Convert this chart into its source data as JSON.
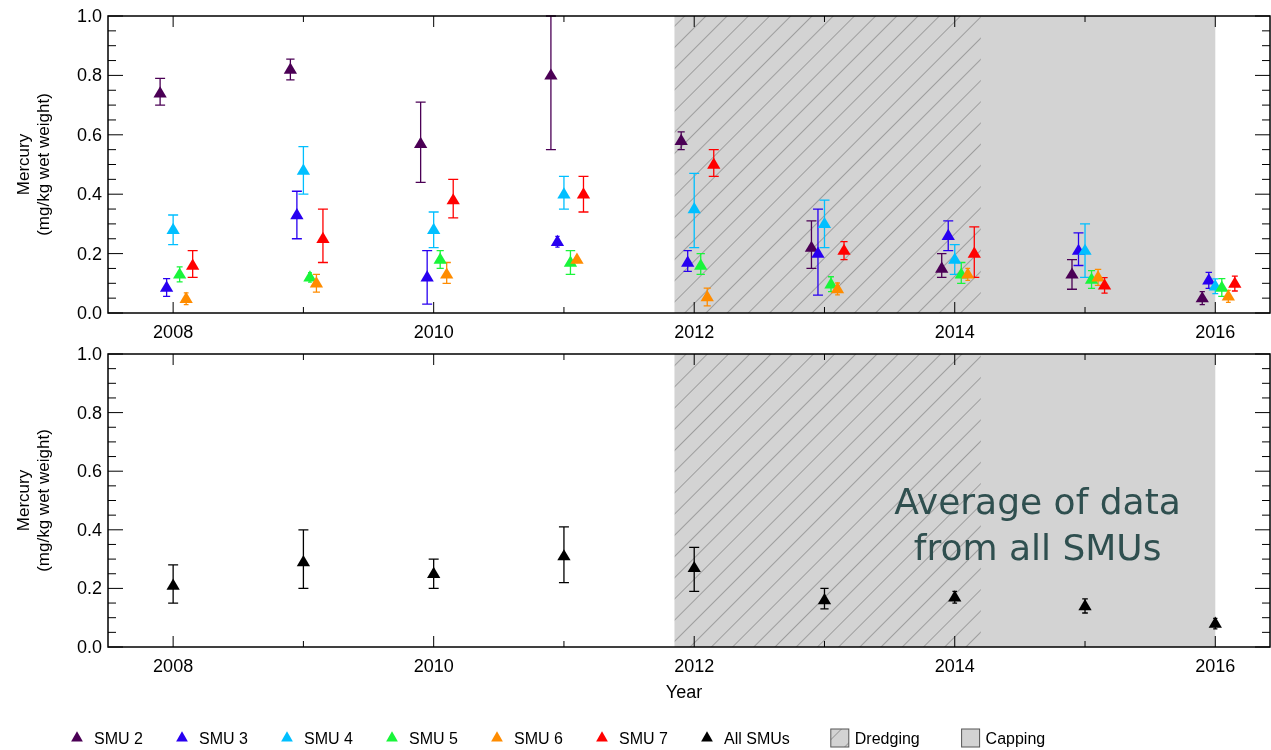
{
  "chart_data": [
    {
      "type": "scatter",
      "ylabel": "Mercury\n(mg/kg wet weight)",
      "marker": "triangle",
      "legend": "bottom",
      "xlim": [
        2007.5,
        2016.42
      ],
      "xticks": [
        2008,
        {
          "value": 2009,
          "label": null
        },
        2010,
        {
          "value": 2011,
          "label": null
        },
        2012,
        {
          "value": 2013,
          "label": null
        },
        2014,
        {
          "value": 2015,
          "label": null
        },
        2016
      ],
      "ylim": [
        0,
        1
      ],
      "yticks": [
        {
          "value": 0,
          "label": "0.0"
        },
        {
          "value": 0.05,
          "label": null
        },
        {
          "value": 0.1,
          "label": null
        },
        {
          "value": 0.15,
          "label": null
        },
        {
          "value": 0.2,
          "label": "0.2"
        },
        {
          "value": 0.25,
          "label": null
        },
        {
          "value": 0.3,
          "label": null
        },
        {
          "value": 0.35,
          "label": null
        },
        {
          "value": 0.4,
          "label": "0.4"
        },
        {
          "value": 0.45,
          "label": null
        },
        {
          "value": 0.5,
          "label": null
        },
        {
          "value": 0.55,
          "label": null
        },
        {
          "value": 0.6,
          "label": "0.6"
        },
        {
          "value": 0.65,
          "label": null
        },
        {
          "value": 0.7,
          "label": null
        },
        {
          "value": 0.75,
          "label": null
        },
        {
          "value": 0.8,
          "label": "0.8"
        },
        {
          "value": 0.85,
          "label": null
        },
        {
          "value": 0.9,
          "label": null
        },
        {
          "value": 0.95,
          "label": null
        },
        {
          "value": 1,
          "label": "1.0"
        }
      ],
      "bands": [
        {
          "axis": "x",
          "from": 2011.85,
          "to": 2016.0,
          "color": "#d3d3d3"
        },
        {
          "axis": "x",
          "from": 2011.85,
          "to": 2014.2
        }
      ],
      "series": [
        {
          "name": "SMU 2",
          "color": "#4b0055",
          "x": [
            2007.9,
            2008.9,
            2009.9,
            2010.9,
            2011.9,
            2012.9,
            2013.9,
            2014.9,
            2015.9
          ],
          "values": [
            0.74,
            0.82,
            0.57,
            0.8,
            0.58,
            0.22,
            0.15,
            0.13,
            0.05
          ],
          "errors": [
            [
              0.7,
              0.79
            ],
            0.035,
            [
              0.44,
              0.71
            ],
            [
              0.55,
              1.0
            ],
            0.03,
            [
              0.15,
              0.31
            ],
            [
              0.12,
              0.2
            ],
            [
              0.08,
              0.18
            ],
            0.022
          ]
        },
        {
          "name": "SMU 3",
          "color": "#2800f0",
          "x": [
            2007.95,
            2008.95,
            2009.95,
            2010.95,
            2011.95,
            2012.95,
            2013.95,
            2014.95,
            2015.95
          ],
          "values": [
            0.086,
            0.33,
            0.12,
            0.24,
            0.17,
            0.2,
            0.26,
            0.21,
            0.11
          ],
          "errors": [
            0.03,
            [
              0.25,
              0.41
            ],
            [
              0.03,
              0.21
            ],
            0.018,
            [
              0.14,
              0.21
            ],
            [
              0.06,
              0.35
            ],
            [
              0.21,
              0.31
            ],
            [
              0.16,
              0.27
            ],
            0.027
          ]
        },
        {
          "name": "SMU 4",
          "color": "#00bfff",
          "x": [
            2008,
            2009,
            2010,
            2011,
            2012,
            2013,
            2014,
            2015,
            2016
          ],
          "values": [
            0.28,
            0.48,
            0.28,
            0.4,
            0.35,
            0.3,
            0.18,
            0.21,
            0.09
          ],
          "errors": [
            [
              0.23,
              0.33
            ],
            [
              0.4,
              0.56
            ],
            [
              0.22,
              0.34
            ],
            [
              0.35,
              0.46
            ],
            [
              0.22,
              0.47
            ],
            [
              0.22,
              0.38
            ],
            [
              0.13,
              0.23
            ],
            [
              0.12,
              0.3
            ],
            0.025
          ]
        },
        {
          "name": "SMU 5",
          "color": "#19f53a",
          "x": [
            2008.05,
            2009.05,
            2010.05,
            2011.05,
            2012.05,
            2013.05,
            2014.05,
            2015.05,
            2016.05
          ],
          "values": [
            0.13,
            0.12,
            0.18,
            0.17,
            0.16,
            0.097,
            0.13,
            0.113,
            0.086
          ],
          "errors": [
            0.025,
            0.016,
            [
              0.15,
              0.21
            ],
            [
              0.13,
              0.21
            ],
            [
              0.13,
              0.2
            ],
            0.025,
            [
              0.1,
              0.17
            ],
            0.03,
            0.03
          ]
        },
        {
          "name": "SMU 6",
          "color": "#ff8c00",
          "x": [
            2008.1,
            2009.1,
            2010.1,
            2011.1,
            2012.1,
            2013.1,
            2014.1,
            2015.1,
            2016.1
          ],
          "values": [
            0.048,
            0.1,
            0.13,
            0.18,
            0.054,
            0.081,
            0.13,
            0.12,
            0.056
          ],
          "errors": [
            0.02,
            0.03,
            [
              0.1,
              0.17
            ],
            0.01,
            0.03,
            0.02,
            0.02,
            0.027,
            0.02
          ]
        },
        {
          "name": "SMU 7",
          "color": "#ff0000",
          "x": [
            2008.15,
            2009.15,
            2010.15,
            2011.15,
            2012.15,
            2013.15,
            2014.15,
            2015.15,
            2016.15
          ],
          "values": [
            0.16,
            0.25,
            0.38,
            0.4,
            0.5,
            0.21,
            0.2,
            0.093,
            0.099
          ],
          "errors": [
            [
              0.12,
              0.21
            ],
            [
              0.17,
              0.35
            ],
            [
              0.32,
              0.45
            ],
            [
              0.34,
              0.46
            ],
            [
              0.46,
              0.55
            ],
            0.03,
            [
              0.12,
              0.29
            ],
            0.026,
            0.025
          ]
        }
      ]
    },
    {
      "type": "scatter",
      "xlabel": "Year",
      "ylabel": "Mercury\n(mg/kg wet weight)",
      "marker": "triangle",
      "legend": "bottom",
      "annotations": [
        "Average of data\nfrom all SMUs"
      ],
      "xlim": [
        2007.5,
        2016.42
      ],
      "xticks": [
        2008,
        {
          "value": 2009,
          "label": null
        },
        2010,
        {
          "value": 2011,
          "label": null
        },
        2012,
        {
          "value": 2013,
          "label": null
        },
        2014,
        {
          "value": 2015,
          "label": null
        },
        2016
      ],
      "ylim": [
        0,
        1
      ],
      "yticks": [
        {
          "value": 0,
          "label": "0.0"
        },
        {
          "value": 0.05,
          "label": null
        },
        {
          "value": 0.1,
          "label": null
        },
        {
          "value": 0.15,
          "label": null
        },
        {
          "value": 0.2,
          "label": "0.2"
        },
        {
          "value": 0.25,
          "label": null
        },
        {
          "value": 0.3,
          "label": null
        },
        {
          "value": 0.35,
          "label": null
        },
        {
          "value": 0.4,
          "label": "0.4"
        },
        {
          "value": 0.45,
          "label": null
        },
        {
          "value": 0.5,
          "label": null
        },
        {
          "value": 0.55,
          "label": null
        },
        {
          "value": 0.6,
          "label": "0.6"
        },
        {
          "value": 0.65,
          "label": null
        },
        {
          "value": 0.7,
          "label": null
        },
        {
          "value": 0.75,
          "label": null
        },
        {
          "value": 0.8,
          "label": "0.8"
        },
        {
          "value": 0.85,
          "label": null
        },
        {
          "value": 0.9,
          "label": null
        },
        {
          "value": 0.95,
          "label": null
        },
        {
          "value": 1,
          "label": "1.0"
        }
      ],
      "bands": [
        {
          "axis": "x",
          "from": 2011.85,
          "to": 2014.2,
          "label": "Dredging"
        },
        {
          "axis": "x",
          "from": 2011.85,
          "to": 2016.0,
          "label": "Capping",
          "color": "#d3d3d3"
        }
      ],
      "series": [
        {
          "name": "All SMUs",
          "color": "#000000",
          "x": [
            2008,
            2009,
            2010,
            2011,
            2012,
            2013,
            2014,
            2015,
            2016
          ],
          "values": [
            0.21,
            0.29,
            0.25,
            0.31,
            0.27,
            0.16,
            0.17,
            0.14,
            0.08
          ],
          "errors": [
            [
              0.15,
              0.28
            ],
            [
              0.2,
              0.4
            ],
            [
              0.2,
              0.3
            ],
            [
              0.22,
              0.41
            ],
            [
              0.19,
              0.34
            ],
            [
              0.13,
              0.2
            ],
            0.02,
            0.024,
            0.018
          ]
        }
      ]
    }
  ]
}
